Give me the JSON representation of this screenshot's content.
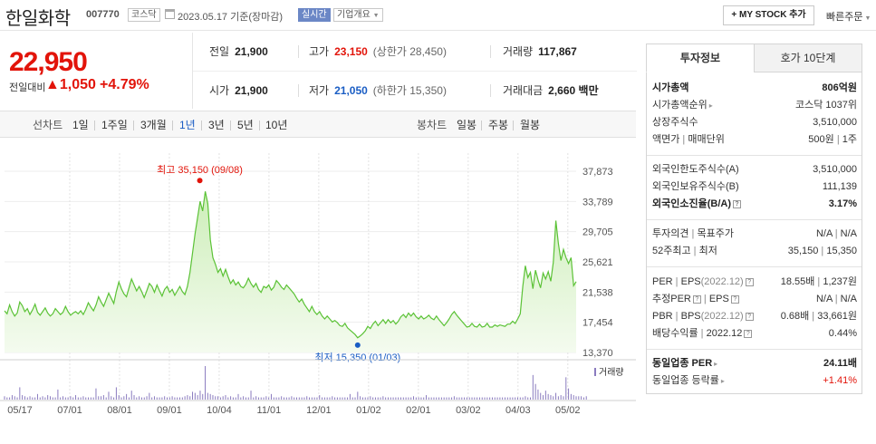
{
  "header": {
    "stock_name": "한일화학",
    "stock_code": "007770",
    "market_tag": "코스닥",
    "date_text": "2023.05.17 기준(장마감)",
    "live_badge": "실시간",
    "company_info_label": "기업개요",
    "my_stock_button": "+ MY STOCK 추가",
    "quick_order_label": "빠른주문"
  },
  "price": {
    "current": "22,950",
    "change_label": "전일대비",
    "change_value": "1,050",
    "change_pct": "+4.79%"
  },
  "stats": {
    "prev_label": "전일",
    "prev_value": "21,900",
    "high_label": "고가",
    "high_value": "23,150",
    "high_limit": "(상한가 28,450)",
    "volume_label": "거래량",
    "volume_value": "117,867",
    "open_label": "시가",
    "open_value": "21,900",
    "low_label": "저가",
    "low_value": "21,050",
    "low_limit": "(하한가 15,350)",
    "amount_label": "거래대금",
    "amount_value": "2,660 백만"
  },
  "period_tabs": {
    "line_label": "선차트",
    "line_items": [
      "1일",
      "1주일",
      "3개월",
      "1년",
      "3년",
      "5년",
      "10년"
    ],
    "active": "1년",
    "candle_label": "봉차트",
    "candle_items": [
      "일봉",
      "주봉",
      "월봉"
    ]
  },
  "chart_data": {
    "type": "area",
    "y_ticks": [
      "37,873",
      "33,789",
      "29,705",
      "25,621",
      "21,538",
      "17,454",
      "13,370"
    ],
    "ylim": [
      13370,
      37873
    ],
    "x_ticks": [
      "05/17",
      "07/01",
      "08/01",
      "09/01",
      "10/04",
      "11/01",
      "12/01",
      "01/02",
      "02/01",
      "03/02",
      "04/03",
      "05/02"
    ],
    "max_annotation": "최고 35,150 (09/08)",
    "min_annotation": "최저 15,350 (01/03)",
    "volume_legend": "거래량",
    "colors": {
      "line": "#5bc236",
      "fill_top": "#cdeeb9",
      "fill_bottom": "#f4fbef",
      "volume": "#8a7bbf",
      "max": "#e2140a",
      "min": "#1a5dc4"
    },
    "prices": [
      19000,
      18600,
      19800,
      18900,
      18300,
      18700,
      20200,
      19700,
      18900,
      19300,
      18500,
      19100,
      19900,
      18800,
      18400,
      18900,
      19400,
      18700,
      18300,
      18600,
      19300,
      18900,
      18500,
      18800,
      19600,
      18900,
      18400,
      18700,
      18900,
      18600,
      19000,
      18500,
      19200,
      20100,
      19500,
      19000,
      19800,
      20900,
      20200,
      19600,
      20500,
      21400,
      20700,
      20000,
      21600,
      22900,
      22000,
      21300,
      20900,
      22100,
      23300,
      22500,
      21700,
      22300,
      21600,
      20800,
      21700,
      22700,
      22300,
      21500,
      22500,
      21700,
      21000,
      21900,
      22300,
      21500,
      21900,
      21100,
      21700,
      22300,
      21600,
      21200,
      22300,
      24200,
      26800,
      29400,
      31600,
      33800,
      32500,
      35150,
      33500,
      28600,
      26200,
      25300,
      24200,
      24700,
      23700,
      24600,
      23600,
      22700,
      23200,
      22500,
      22900,
      22300,
      22100,
      22600,
      23400,
      22700,
      22200,
      22700,
      21900,
      21500,
      22300,
      22100,
      22500,
      21800,
      22200,
      23100,
      22700,
      22200,
      21900,
      22500,
      22100,
      21700,
      21300,
      20700,
      20200,
      20600,
      19900,
      19400,
      18900,
      19600,
      18900,
      18500,
      18900,
      18300,
      17900,
      18300,
      17900,
      17500,
      17700,
      17400,
      17000,
      16900,
      17300,
      16700,
      16400,
      16100,
      15800,
      15350,
      15600,
      15900,
      16300,
      16900,
      16600,
      17200,
      17600,
      17000,
      17400,
      17800,
      17300,
      17800,
      17400,
      17700,
      17200,
      17600,
      18200,
      18500,
      18100,
      18700,
      18300,
      18700,
      18200,
      17900,
      18300,
      17900,
      18100,
      18400,
      18000,
      17800,
      18300,
      17800,
      17400,
      17000,
      17400,
      17900,
      18500,
      18900,
      18400,
      18000,
      17600,
      17200,
      16800,
      16900,
      17300,
      16900,
      16800,
      17200,
      16800,
      16900,
      17300,
      16800,
      16800,
      17100,
      16900,
      17100,
      17000,
      16900,
      17200,
      17200,
      17600,
      17300,
      17900,
      18600,
      22300,
      25100,
      23500,
      24200,
      22000,
      24500,
      23200,
      22100,
      24100,
      23300,
      24300,
      23000,
      25600,
      31200,
      28100,
      25800,
      27300,
      26200,
      25400,
      26200,
      22400,
      22950
    ],
    "volumes": [
      3,
      2,
      2,
      4,
      3,
      2,
      11,
      4,
      3,
      2,
      3,
      2,
      2,
      5,
      2,
      3,
      2,
      4,
      3,
      2,
      2,
      9,
      2,
      3,
      2,
      2,
      3,
      2,
      4,
      2,
      2,
      3,
      2,
      2,
      2,
      2,
      10,
      3,
      3,
      4,
      2,
      7,
      3,
      2,
      11,
      4,
      2,
      3,
      5,
      2,
      8,
      4,
      2,
      3,
      2,
      2,
      3,
      6,
      2,
      3,
      2,
      2,
      2,
      3,
      2,
      2,
      3,
      2,
      2,
      2,
      2,
      3,
      4,
      3,
      7,
      6,
      4,
      8,
      5,
      30,
      6,
      5,
      4,
      3,
      3,
      2,
      3,
      4,
      2,
      3,
      2,
      2,
      5,
      2,
      3,
      2,
      2,
      8,
      2,
      3,
      2,
      2,
      2,
      3,
      2,
      5,
      2,
      2,
      2,
      3,
      2,
      2,
      2,
      3,
      2,
      2,
      2,
      2,
      2,
      3,
      2,
      2,
      2,
      2,
      4,
      2,
      2,
      2,
      2,
      3,
      2,
      2,
      2,
      2,
      2,
      2,
      5,
      2,
      2,
      7,
      3,
      2,
      2,
      2,
      3,
      2,
      2,
      2,
      2,
      3,
      2,
      2,
      2,
      2,
      2,
      2,
      2,
      2,
      2,
      2,
      2,
      3,
      2,
      2,
      2,
      2,
      4,
      2,
      2,
      2,
      2,
      2,
      2,
      2,
      2,
      2,
      2,
      3,
      2,
      2,
      2,
      2,
      2,
      2,
      2,
      2,
      2,
      2,
      2,
      2,
      2,
      2,
      2,
      2,
      2,
      2,
      2,
      2,
      2,
      2,
      2,
      2,
      2,
      2,
      2,
      3,
      2,
      2,
      22,
      14,
      9,
      6,
      4,
      8,
      5,
      4,
      3,
      6,
      3,
      4,
      3,
      20,
      10,
      5,
      4,
      3,
      3,
      3,
      2,
      3
    ]
  },
  "right_panel": {
    "tab_invest": "투자정보",
    "tab_orderbook": "호가 10단계",
    "rows": {
      "mcap_label": "시가총액",
      "mcap_value": "806억원",
      "mcap_rank_label": "시가총액순위",
      "mcap_rank_value": "코스닥 1037위",
      "shares_label": "상장주식수",
      "shares_value": "3,510,000",
      "par_label": "액면가",
      "par_label2": "매매단위",
      "par_value": "500원",
      "par_value2": "1주",
      "foreign_limit_label": "외국인한도주식수(A)",
      "foreign_limit_value": "3,510,000",
      "foreign_hold_label": "외국인보유주식수(B)",
      "foreign_hold_value": "111,139",
      "foreign_ratio_label": "외국인소진율(B/A)",
      "foreign_ratio_value": "3.17%",
      "opinion_label": "투자의견",
      "opinion_label2": "목표주가",
      "opinion_value": "N/A",
      "opinion_value2": "N/A",
      "w52_label": "52주최고",
      "w52_label2": "최저",
      "w52_high": "35,150",
      "w52_low": "15,350",
      "per_label": "PER",
      "eps_label": "EPS",
      "eps_year": "(2022.12)",
      "per_value": "18.55배",
      "eps_value": "1,237원",
      "est_per_label": "추정PER",
      "est_eps_label": "EPS",
      "est_per_value": "N/A",
      "est_eps_value": "N/A",
      "pbr_label": "PBR",
      "bps_label": "BPS",
      "bps_year": "(2022.12)",
      "pbr_value": "0.68배",
      "bps_value": "33,661원",
      "div_label": "배당수익률",
      "div_year": "2022.12",
      "div_value": "0.44%",
      "ind_per_label": "동일업종 PER",
      "ind_per_value": "24.11배",
      "ind_chg_label": "동일업종 등락률",
      "ind_chg_value": "+1.41%"
    }
  }
}
